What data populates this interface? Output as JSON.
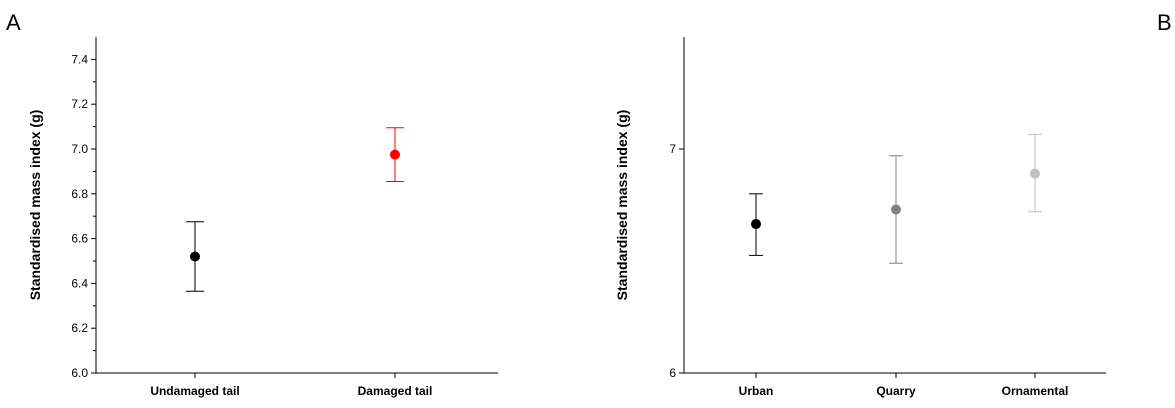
{
  "panels": {
    "a": "A",
    "b": "B"
  },
  "chart_data": [
    {
      "type": "scatter",
      "panel": "A",
      "ylabel": "Standardised mass index (g)",
      "ylim": [
        6.0,
        7.5
      ],
      "yticks": [
        "6.0",
        "6.2",
        "6.4",
        "6.6",
        "6.8",
        "7.0",
        "7.2",
        "7.4"
      ],
      "yminor": true,
      "categories": [
        "Undamaged tail",
        "Damaged tail"
      ],
      "points": [
        {
          "category": "Undamaged tail",
          "mean": 6.52,
          "low": 6.365,
          "high": 6.675,
          "color": "#000000"
        },
        {
          "category": "Damaged tail",
          "mean": 6.975,
          "low": 6.855,
          "high": 7.095,
          "color": "#ff0000"
        }
      ]
    },
    {
      "type": "scatter",
      "panel": "B",
      "ylabel": "Standardised mass index (g)",
      "ylim": [
        6.0,
        7.5
      ],
      "yticks": [
        "6",
        "7"
      ],
      "yminor": false,
      "categories": [
        "Urban",
        "Quarry",
        "Ornamental"
      ],
      "points": [
        {
          "category": "Urban",
          "mean": 6.665,
          "low": 6.525,
          "high": 6.8,
          "color": "#000000"
        },
        {
          "category": "Quarry",
          "mean": 6.73,
          "low": 6.49,
          "high": 6.97,
          "color": "#808080"
        },
        {
          "category": "Ornamental",
          "mean": 6.89,
          "low": 6.72,
          "high": 7.065,
          "color": "#c0c0c0"
        }
      ]
    }
  ]
}
